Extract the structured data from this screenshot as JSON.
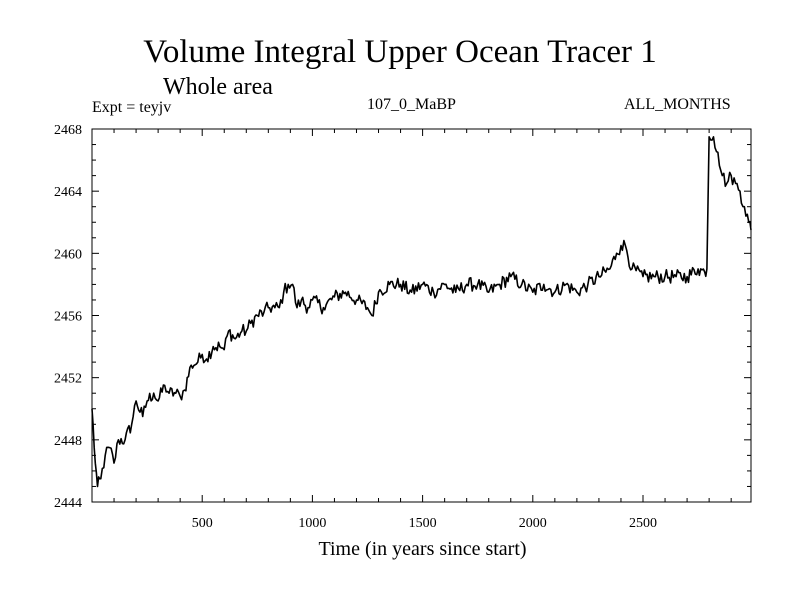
{
  "chart_data": {
    "type": "line",
    "title": "Volume Integral Upper Ocean Tracer 1",
    "subtitle": "Whole area",
    "experiment_label": "Expt = teyjv",
    "experiment_name": "107_0_MaBP",
    "period": "ALL_MONTHS",
    "xlabel": "Time (in years since start)",
    "ylabel": "",
    "xlim": [
      0,
      2990
    ],
    "ylim": [
      2444,
      2468
    ],
    "xticks": [
      500,
      1000,
      1500,
      2000,
      2500
    ],
    "yticks": [
      2444,
      2448,
      2452,
      2456,
      2460,
      2464,
      2468
    ],
    "series": [
      {
        "name": "Tracer 1",
        "x": [
          0,
          15,
          25,
          40,
          60,
          80,
          100,
          120,
          150,
          180,
          200,
          230,
          250,
          280,
          300,
          330,
          350,
          380,
          400,
          420,
          450,
          480,
          500,
          520,
          550,
          580,
          600,
          620,
          650,
          680,
          700,
          720,
          750,
          780,
          800,
          830,
          850,
          870,
          890,
          910,
          930,
          950,
          980,
          1000,
          1050,
          1100,
          1150,
          1200,
          1250,
          1270,
          1300,
          1350,
          1400,
          1450,
          1500,
          1550,
          1600,
          1650,
          1700,
          1750,
          1800,
          1850,
          1900,
          1950,
          2000,
          2050,
          2100,
          2150,
          2200,
          2250,
          2300,
          2350,
          2380,
          2400,
          2420,
          2450,
          2500,
          2550,
          2600,
          2650,
          2700,
          2750,
          2780,
          2790,
          2800,
          2820,
          2840,
          2860,
          2880,
          2900,
          2920,
          2940,
          2960,
          2980,
          2990
        ],
        "values": [
          2450.0,
          2446.5,
          2445.0,
          2445.5,
          2447.0,
          2447.5,
          2446.5,
          2448.0,
          2448.0,
          2449.0,
          2450.5,
          2449.5,
          2450.5,
          2451.0,
          2450.5,
          2451.5,
          2451.0,
          2451.0,
          2450.8,
          2451.2,
          2452.8,
          2453.0,
          2453.5,
          2453.2,
          2454.0,
          2454.0,
          2453.8,
          2455.0,
          2454.5,
          2455.0,
          2455.0,
          2455.5,
          2456.0,
          2456.2,
          2456.5,
          2456.5,
          2456.5,
          2457.5,
          2458.0,
          2458.0,
          2456.5,
          2457.0,
          2456.5,
          2457.0,
          2456.5,
          2457.2,
          2457.5,
          2457.0,
          2456.5,
          2456.0,
          2457.5,
          2458.0,
          2458.0,
          2457.5,
          2458.0,
          2457.5,
          2458.0,
          2457.5,
          2458.0,
          2458.0,
          2457.5,
          2458.0,
          2458.5,
          2458.0,
          2457.5,
          2458.0,
          2457.5,
          2458.0,
          2457.5,
          2458.0,
          2458.5,
          2459.0,
          2460.0,
          2460.5,
          2460.5,
          2459.0,
          2458.5,
          2458.5,
          2458.5,
          2458.5,
          2458.5,
          2459.0,
          2458.8,
          2459.0,
          2467.5,
          2467.5,
          2466.5,
          2465.0,
          2464.5,
          2465.0,
          2464.5,
          2464.0,
          2463.0,
          2462.0,
          2461.5
        ]
      }
    ]
  }
}
